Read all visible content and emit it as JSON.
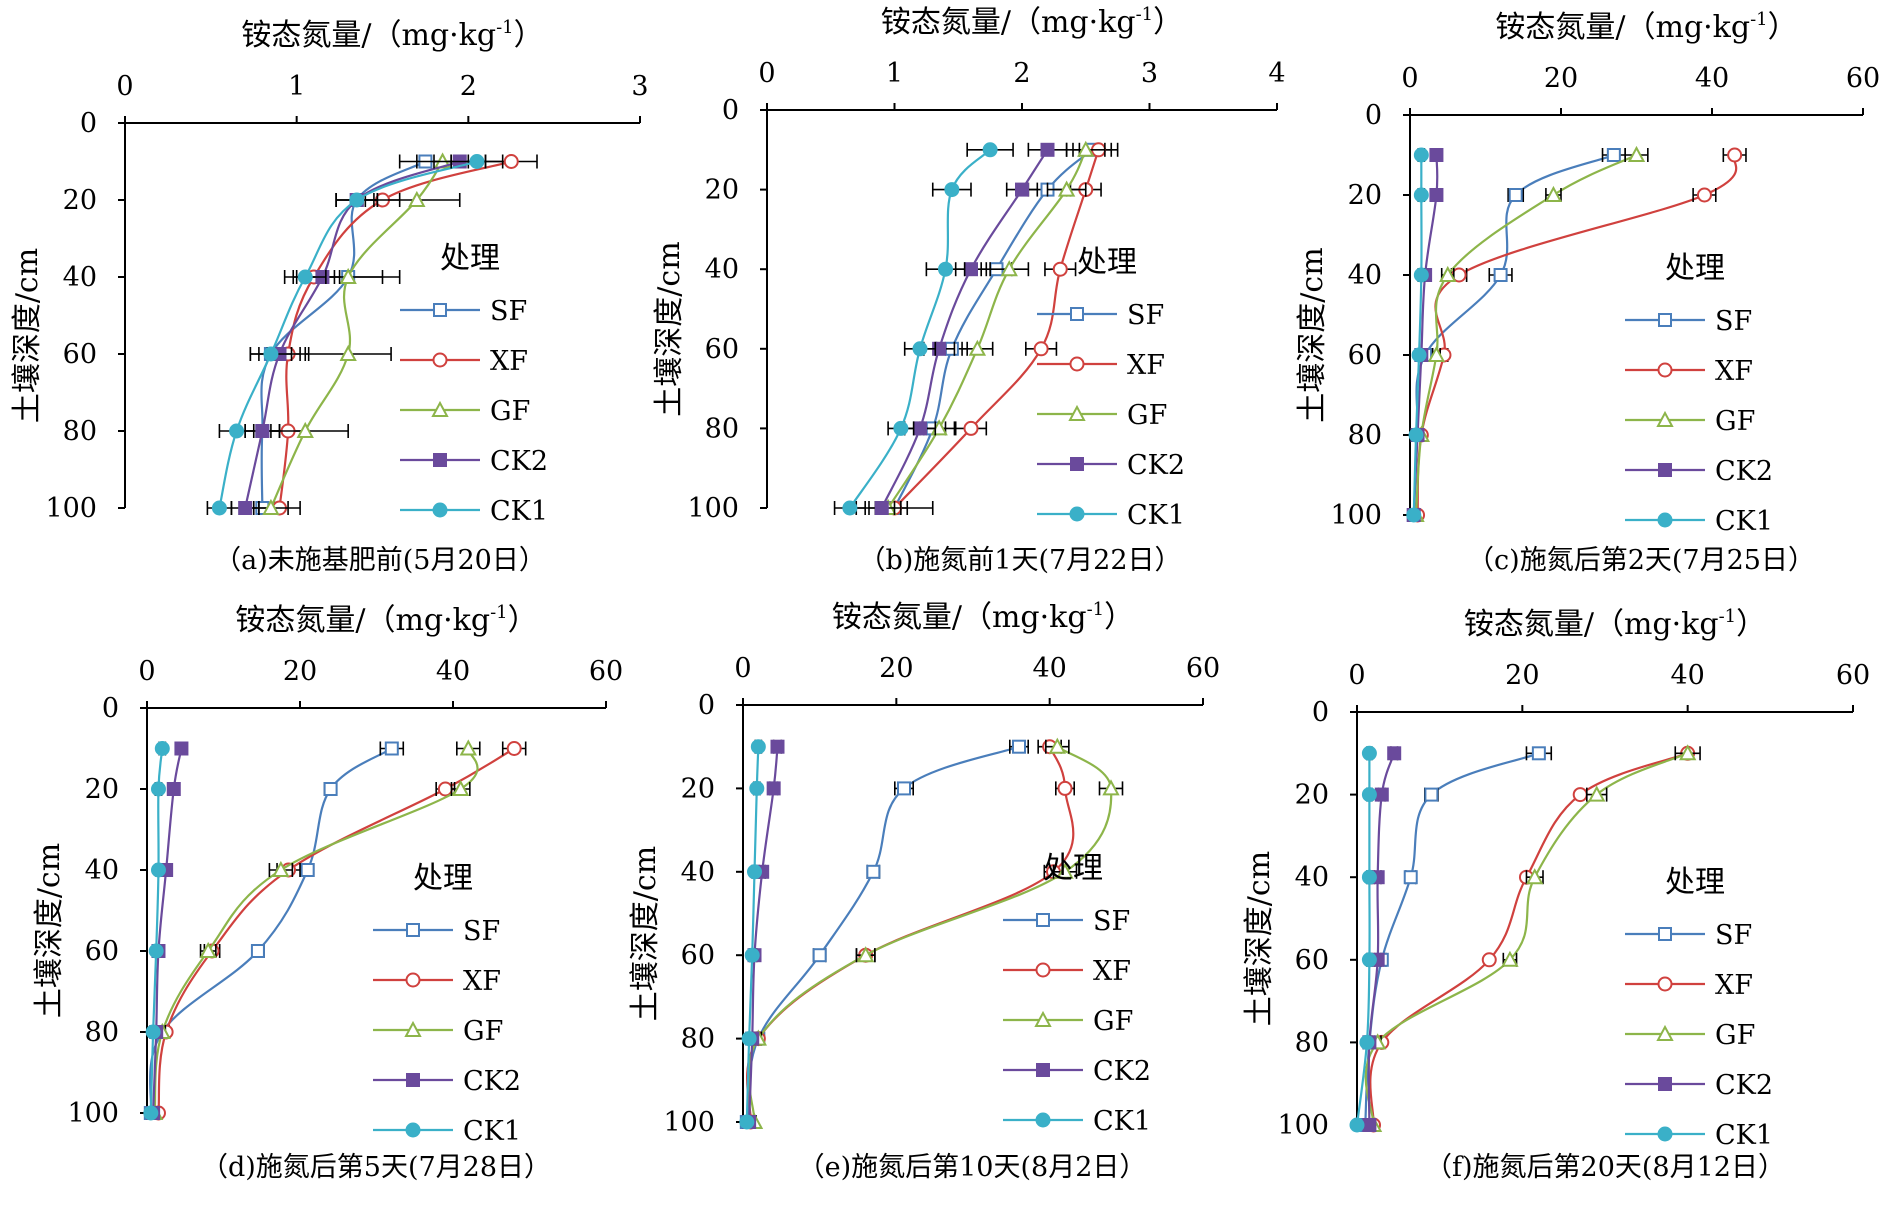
{
  "figure": {
    "x_title": "铵态氮量/（mg·kg",
    "x_title_sup": "-1",
    "x_title_end": "）",
    "y_title": "土壤深度/cm",
    "legend_title": "处理"
  },
  "series_styles": [
    {
      "name": "SF",
      "color": "#4a7ebb",
      "marker": "open-square"
    },
    {
      "name": "XF",
      "color": "#d0413e",
      "marker": "open-circle"
    },
    {
      "name": "GF",
      "color": "#8db54a",
      "marker": "open-triangle"
    },
    {
      "name": "CK2",
      "color": "#6a4a9c",
      "marker": "filled-square"
    },
    {
      "name": "CK1",
      "color": "#3ab0c8",
      "marker": "filled-circle"
    }
  ],
  "chart_data": [
    {
      "type": "line",
      "caption": "（a)未施基肥前(5月20日）",
      "xlabel": "铵态氮量/（mg·kg-1）",
      "ylabel": "土壤深度/cm",
      "xlim": [
        0,
        3
      ],
      "ylim": [
        0,
        100
      ],
      "x_ticks": [
        0,
        1,
        2,
        3
      ],
      "y_ticks": [
        0,
        20,
        40,
        60,
        80,
        100
      ],
      "y": [
        10,
        20,
        40,
        60,
        80,
        100
      ],
      "series": [
        {
          "name": "SF",
          "values": [
            1.75,
            1.35,
            1.3,
            0.85,
            0.8,
            0.8
          ],
          "errors": [
            0.15,
            0.12,
            0.2,
            0.12,
            0.1,
            0.07
          ]
        },
        {
          "name": "XF",
          "values": [
            2.25,
            1.5,
            1.1,
            0.95,
            0.95,
            0.9
          ],
          "errors": [
            0.15,
            0.1,
            0.12,
            0.12,
            0.1,
            0.12
          ]
        },
        {
          "name": "GF",
          "values": [
            1.85,
            1.7,
            1.3,
            1.3,
            1.05,
            0.85
          ],
          "errors": [
            0.15,
            0.25,
            0.3,
            0.25,
            0.25,
            0.1
          ]
        },
        {
          "name": "CK2",
          "values": [
            1.95,
            1.35,
            1.15,
            0.9,
            0.8,
            0.7
          ],
          "errors": [
            0.15,
            0.12,
            0.1,
            0.12,
            0.1,
            0.08
          ]
        },
        {
          "name": "CK1",
          "values": [
            2.05,
            1.35,
            1.05,
            0.85,
            0.65,
            0.55
          ],
          "errors": [
            0.15,
            0.12,
            0.12,
            0.12,
            0.1,
            0.07
          ]
        }
      ]
    },
    {
      "type": "line",
      "caption": "（b)施氮前1天(7月22日）",
      "xlabel": "铵态氮量/（mg·kg-1）",
      "ylabel": "土壤深度/cm",
      "xlim": [
        0,
        4
      ],
      "ylim": [
        0,
        100
      ],
      "x_ticks": [
        0,
        1,
        2,
        3,
        4
      ],
      "y_ticks": [
        0,
        20,
        40,
        60,
        80,
        100
      ],
      "y": [
        10,
        20,
        40,
        60,
        80,
        100
      ],
      "series": [
        {
          "name": "SF",
          "values": [
            2.55,
            2.2,
            1.8,
            1.45,
            1.3,
            1.0
          ],
          "errors": [
            0.15,
            0.15,
            0.12,
            0.12,
            0.1,
            0.1
          ]
        },
        {
          "name": "XF",
          "values": [
            2.6,
            2.5,
            2.3,
            2.15,
            1.6,
            1.0
          ],
          "errors": [
            0.15,
            0.12,
            0.12,
            0.12,
            0.12,
            0.3
          ]
        },
        {
          "name": "GF",
          "values": [
            2.5,
            2.35,
            1.9,
            1.65,
            1.35,
            0.95
          ],
          "errors": [
            0.15,
            0.15,
            0.15,
            0.12,
            0.12,
            0.1
          ]
        },
        {
          "name": "CK2",
          "values": [
            2.2,
            2.0,
            1.6,
            1.35,
            1.2,
            0.9
          ],
          "errors": [
            0.15,
            0.12,
            0.12,
            0.12,
            0.12,
            0.1
          ]
        },
        {
          "name": "CK1",
          "values": [
            1.75,
            1.45,
            1.4,
            1.2,
            1.05,
            0.65
          ],
          "errors": [
            0.18,
            0.15,
            0.15,
            0.12,
            0.1,
            0.12
          ]
        }
      ]
    },
    {
      "type": "line",
      "caption": "（c)施氮后第2天(7月25日）",
      "xlabel": "铵态氮量/（mg·kg-1）",
      "ylabel": "土壤深度/cm",
      "xlim": [
        0,
        60
      ],
      "ylim": [
        0,
        100
      ],
      "x_ticks": [
        0,
        20,
        40,
        60
      ],
      "y_ticks": [
        0,
        20,
        40,
        60,
        80,
        100
      ],
      "y": [
        10,
        20,
        40,
        60,
        80,
        100
      ],
      "series": [
        {
          "name": "SF",
          "values": [
            27,
            14,
            12,
            2,
            1,
            0.5
          ],
          "errors": [
            1.5,
            1.0,
            1.5,
            0.5,
            0.3,
            0.2
          ]
        },
        {
          "name": "XF",
          "values": [
            43,
            39,
            6.5,
            4.5,
            1.5,
            1.0
          ],
          "errors": [
            1.5,
            1.5,
            1.0,
            0.5,
            0.3,
            0.2
          ]
        },
        {
          "name": "GF",
          "values": [
            30,
            19,
            5,
            3.5,
            1.5,
            0.8
          ],
          "errors": [
            1.5,
            1.0,
            0.8,
            0.5,
            0.3,
            0.2
          ]
        },
        {
          "name": "CK2",
          "values": [
            3.5,
            3.5,
            2,
            1.5,
            1,
            0.5
          ],
          "errors": [
            0.5,
            0.4,
            0.4,
            0.3,
            0.2,
            0.2
          ]
        },
        {
          "name": "CK1",
          "values": [
            1.5,
            1.5,
            1.5,
            1.2,
            0.8,
            0.5
          ],
          "errors": [
            0.4,
            0.4,
            0.4,
            0.3,
            0.2,
            0.2
          ]
        }
      ]
    },
    {
      "type": "line",
      "caption": "（d)施氮后第5天(7月28日）",
      "xlabel": "铵态氮量/（mg·kg-1）",
      "ylabel": "土壤深度/cm",
      "xlim": [
        0,
        60
      ],
      "ylim": [
        0,
        100
      ],
      "x_ticks": [
        0,
        20,
        40,
        60
      ],
      "y_ticks": [
        0,
        20,
        40,
        60,
        80,
        100
      ],
      "y": [
        10,
        20,
        40,
        60,
        80,
        100
      ],
      "series": [
        {
          "name": "SF",
          "values": [
            32,
            24,
            21,
            14.5,
            2,
            0.5
          ],
          "errors": [
            1.5,
            0.8,
            0.8,
            0.8,
            0.3,
            0.2
          ]
        },
        {
          "name": "XF",
          "values": [
            48,
            39,
            18.5,
            8.5,
            2.5,
            1.5
          ],
          "errors": [
            1.5,
            1.2,
            1.5,
            1.0,
            0.4,
            0.3
          ]
        },
        {
          "name": "GF",
          "values": [
            42,
            41,
            17.5,
            8,
            2,
            1.0
          ],
          "errors": [
            1.5,
            1.2,
            1.5,
            1.0,
            0.4,
            0.3
          ]
        },
        {
          "name": "CK2",
          "values": [
            4.5,
            3.5,
            2.5,
            1.5,
            1.2,
            0.8
          ],
          "errors": [
            0.5,
            0.5,
            0.4,
            0.3,
            0.2,
            0.2
          ]
        },
        {
          "name": "CK1",
          "values": [
            2,
            1.5,
            1.5,
            1.2,
            0.8,
            0.5
          ],
          "errors": [
            0.4,
            0.4,
            0.3,
            0.3,
            0.2,
            0.2
          ]
        }
      ]
    },
    {
      "type": "line",
      "caption": "（e)施氮后第10天(8月2日）",
      "xlabel": "铵态氮量/（mg·kg-1）",
      "ylabel": "土壤深度/cm",
      "xlim": [
        0,
        60
      ],
      "ylim": [
        0,
        100
      ],
      "x_ticks": [
        0,
        20,
        40,
        60
      ],
      "y_ticks": [
        0,
        20,
        40,
        60,
        80,
        100
      ],
      "y": [
        10,
        20,
        40,
        60,
        80,
        100
      ],
      "series": [
        {
          "name": "SF",
          "values": [
            36,
            21,
            17,
            10,
            2,
            0.5
          ],
          "errors": [
            1.2,
            1.2,
            0.8,
            0.8,
            0.4,
            0.2
          ]
        },
        {
          "name": "XF",
          "values": [
            40,
            42,
            40.5,
            16,
            2,
            1.0
          ],
          "errors": [
            1.5,
            1.2,
            1.2,
            1.2,
            0.4,
            0.2
          ]
        },
        {
          "name": "GF",
          "values": [
            41,
            48,
            42,
            16,
            2,
            1.5
          ],
          "errors": [
            1.5,
            1.5,
            1.5,
            1.2,
            0.4,
            0.2
          ]
        },
        {
          "name": "CK2",
          "values": [
            4.5,
            4,
            2.5,
            1.5,
            1.2,
            0.8
          ],
          "errors": [
            0.5,
            0.5,
            0.4,
            0.3,
            0.2,
            0.2
          ]
        },
        {
          "name": "CK1",
          "values": [
            2,
            1.8,
            1.5,
            1.2,
            0.8,
            0.5
          ],
          "errors": [
            0.4,
            0.4,
            0.3,
            0.3,
            0.2,
            0.2
          ]
        }
      ]
    },
    {
      "type": "line",
      "caption": "（f)施氮后第20天(8月12日）",
      "xlabel": "铵态氮量/（mg·kg-1）",
      "ylabel": "土壤深度/cm",
      "xlim": [
        0,
        60
      ],
      "ylim": [
        0,
        100
      ],
      "x_ticks": [
        0,
        20,
        40,
        60
      ],
      "y_ticks": [
        0,
        20,
        40,
        60,
        80,
        100
      ],
      "y": [
        10,
        20,
        40,
        60,
        80,
        100
      ],
      "series": [
        {
          "name": "SF",
          "values": [
            22,
            9,
            6.5,
            3,
            1.5,
            1.0
          ],
          "errors": [
            1.5,
            0.8,
            0.6,
            0.5,
            0.3,
            0.2
          ]
        },
        {
          "name": "XF",
          "values": [
            40,
            27,
            20.5,
            16,
            3,
            2
          ]
        },
        {
          "name": "GF",
          "values": [
            40,
            29,
            21.5,
            18.5,
            2.5,
            2
          ],
          "errors": [
            1.5,
            1.2,
            1.0,
            0.8,
            0.4,
            0.2
          ]
        },
        {
          "name": "CK2",
          "values": [
            4.5,
            3,
            2.5,
            2.5,
            1.5,
            1.5
          ],
          "errors": [
            0.4,
            0.4,
            0.4,
            0.4,
            0.3,
            0.2
          ]
        },
        {
          "name": "CK1",
          "values": [
            1.5,
            1.5,
            1.5,
            1.5,
            1.2,
            0
          ],
          "errors": [
            0.3,
            0.3,
            0.3,
            0.3,
            0.3,
            0.2
          ]
        }
      ]
    }
  ]
}
